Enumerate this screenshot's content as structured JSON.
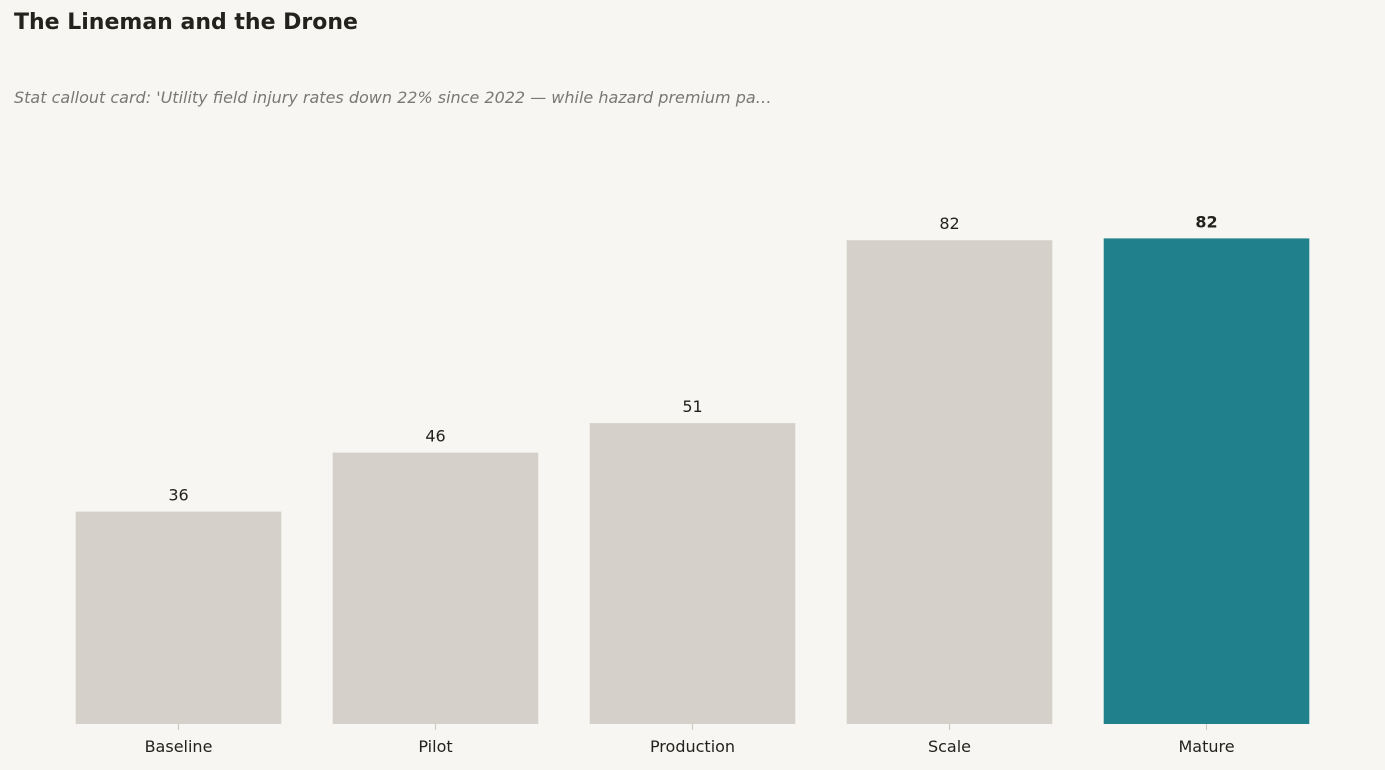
{
  "chart_data": {
    "type": "bar",
    "title": "The Lineman and the Drone",
    "subtitle": "Stat callout card: 'Utility field injury rates down 22% since 2022 — while hazard premium pa…",
    "xlabel": "",
    "ylabel": "",
    "categories": [
      "Baseline",
      "Pilot",
      "Production",
      "Scale",
      "Mature"
    ],
    "values": [
      36,
      46,
      51,
      82,
      82.3
    ],
    "value_labels": [
      "36",
      "46",
      "51",
      "82",
      "82"
    ],
    "highlight_index": 4,
    "ylim": [
      0,
      100
    ],
    "grid": false,
    "legend": "none",
    "colors": {
      "bar": "#d5d1ca",
      "highlight": "#20818c",
      "tick": "#cfcbc4",
      "background": "#f7f6f3"
    }
  }
}
